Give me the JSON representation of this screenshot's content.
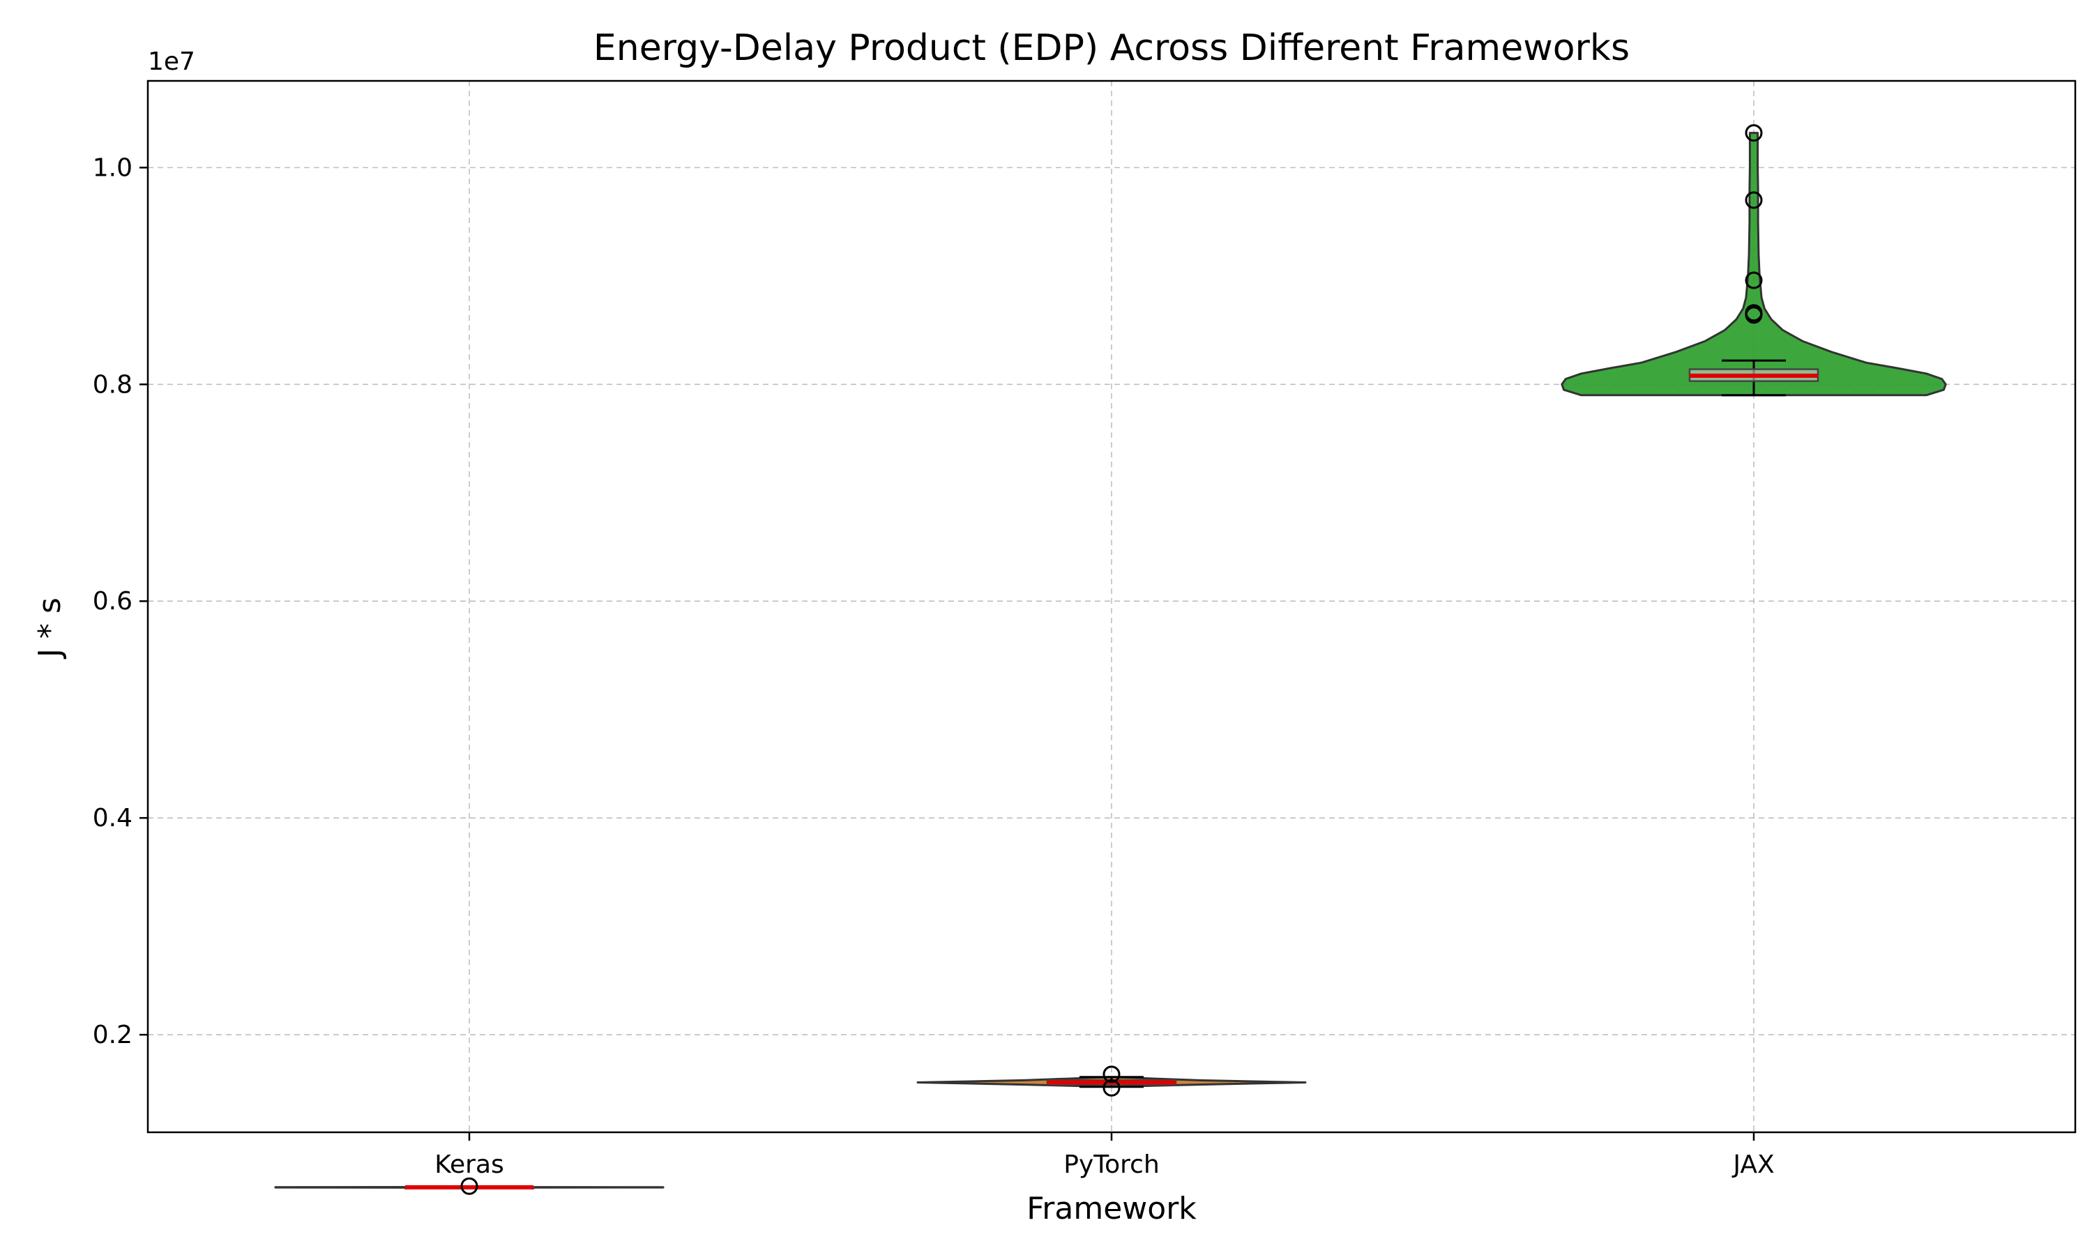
{
  "chart_data": {
    "type": "violin",
    "title": "Energy-Delay Product (EDP) Across Different Frameworks",
    "xlabel": "Framework",
    "ylabel": "J * s",
    "y_offset_label": "1e7",
    "y_scale_multiplier": 10000000,
    "ylim": [
      0.11,
      1.08
    ],
    "yticks": [
      0.2,
      0.4,
      0.6,
      0.8,
      1.0
    ],
    "ytick_labels": [
      "0.2",
      "0.4",
      "0.6",
      "0.8",
      "1.0"
    ],
    "grid": true,
    "categories": [
      "Keras",
      "PyTorch",
      "JAX"
    ],
    "series": [
      {
        "category": "Keras",
        "color": "#1f77b4",
        "min": 0.0589,
        "q1": 0.0591,
        "median": 0.0593,
        "q3": 0.0595,
        "max": 0.0597,
        "outliers": [
          0.0603
        ],
        "density_profile": [
          [
            0.0589,
            0.0
          ],
          [
            0.0591,
            1.0
          ],
          [
            0.0593,
            1.0
          ],
          [
            0.0595,
            0.0
          ]
        ]
      },
      {
        "category": "PyTorch",
        "color": "#c87a2a",
        "min": 0.152,
        "q1": 0.154,
        "median": 0.156,
        "q3": 0.158,
        "max": 0.161,
        "outliers": [
          0.151,
          0.1635
        ],
        "density_profile": [
          [
            0.152,
            0.0
          ],
          [
            0.154,
            0.45
          ],
          [
            0.156,
            1.0
          ],
          [
            0.158,
            0.45
          ],
          [
            0.161,
            0.0
          ]
        ]
      },
      {
        "category": "JAX",
        "color": "#2ca02c",
        "min": 0.79,
        "q1": 0.803,
        "median": 0.808,
        "q3": 0.814,
        "max": 0.822,
        "outliers": [
          0.864,
          0.866,
          0.896,
          0.97,
          1.032
        ],
        "density_profile": [
          [
            0.79,
            0.89
          ],
          [
            0.795,
            0.98
          ],
          [
            0.8,
            0.99
          ],
          [
            0.805,
            0.97
          ],
          [
            0.81,
            0.89
          ],
          [
            0.815,
            0.74
          ],
          [
            0.82,
            0.58
          ],
          [
            0.83,
            0.4
          ],
          [
            0.84,
            0.25
          ],
          [
            0.85,
            0.15
          ],
          [
            0.86,
            0.09
          ],
          [
            0.87,
            0.055
          ],
          [
            0.88,
            0.04
          ],
          [
            0.89,
            0.035
          ],
          [
            0.9,
            0.03
          ],
          [
            0.92,
            0.025
          ],
          [
            0.95,
            0.022
          ],
          [
            0.98,
            0.022
          ],
          [
            1.0,
            0.02
          ],
          [
            1.02,
            0.02
          ],
          [
            1.032,
            0.02
          ]
        ]
      }
    ]
  }
}
